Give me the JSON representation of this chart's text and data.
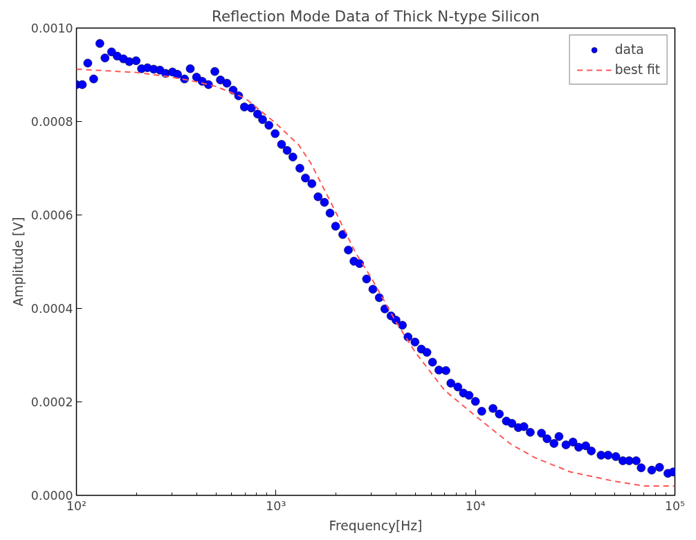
{
  "chart_data": {
    "type": "scatter",
    "title": "Reflection Mode Data of Thick N-type Silicon",
    "xlabel": "Frequency[Hz]",
    "ylabel": "Amplitude [V]",
    "log": "x",
    "xlim": [
      100,
      100000
    ],
    "xticks": [
      {
        "value": 100,
        "label": "10²"
      },
      {
        "value": 1000,
        "label": "10³"
      },
      {
        "value": 10000,
        "label": "10⁴"
      },
      {
        "value": 100000,
        "label": "10⁵"
      }
    ],
    "ylim": [
      0,
      0.001
    ],
    "yticks": [
      {
        "value": 0,
        "label": "0.0000"
      },
      {
        "value": 0.0002,
        "label": "0.0002"
      },
      {
        "value": 0.0004,
        "label": "0.0004"
      },
      {
        "value": 0.0006,
        "label": "0.0006"
      },
      {
        "value": 0.0008,
        "label": "0.0008"
      },
      {
        "value": 0.001,
        "label": "0.0010"
      }
    ],
    "grid": false,
    "legend": "top right",
    "series": [
      {
        "name": "data",
        "marker": "circle",
        "color": "#0000ff",
        "x": [
          100,
          107,
          114,
          122,
          131,
          139,
          150,
          160,
          172,
          184,
          199,
          212,
          227,
          244,
          262,
          280,
          303,
          321,
          348,
          372,
          400,
          427,
          459,
          494,
          527,
          568,
          610,
          650,
          695,
          753,
          809,
          857,
          922,
          991,
          1067,
          1138,
          1216,
          1318,
          1406,
          1514,
          1626,
          1750,
          1867,
          1991,
          2163,
          2307,
          2461,
          2625,
          2847,
          3062,
          3296,
          3516,
          3776,
          4000,
          4305,
          4592,
          4977,
          5358,
          5715,
          6095,
          6561,
          7112,
          7534,
          8166,
          8710,
          9290,
          10000,
          10760,
          12250,
          13180,
          14290,
          15240,
          16410,
          17500,
          18840,
          21440,
          22860,
          24770,
          26240,
          28440,
          30830,
          32960,
          35730,
          38110,
          42660,
          46240,
          50580,
          54830,
          59020,
          63970,
          67760,
          76560,
          83750,
          92260,
          98000
        ],
        "values": [
          0.000879,
          0.000879,
          0.000925,
          0.000891,
          0.000967,
          0.000936,
          0.000949,
          0.00094,
          0.000934,
          0.000928,
          0.00093,
          0.000913,
          0.000915,
          0.000912,
          0.00091,
          0.000903,
          0.000906,
          0.000901,
          0.000891,
          0.000913,
          0.000895,
          0.000886,
          0.000879,
          0.000907,
          0.000889,
          0.000882,
          0.000867,
          0.000855,
          0.000831,
          0.000829,
          0.000816,
          0.000804,
          0.000792,
          0.000774,
          0.000751,
          0.000738,
          0.000724,
          0.0007,
          0.000679,
          0.000667,
          0.000639,
          0.000627,
          0.000604,
          0.000576,
          0.000558,
          0.000525,
          0.000501,
          0.000496,
          0.000463,
          0.000441,
          0.000423,
          0.000399,
          0.000384,
          0.000375,
          0.000364,
          0.000339,
          0.000328,
          0.000313,
          0.000306,
          0.000285,
          0.000268,
          0.000267,
          0.00024,
          0.000232,
          0.000219,
          0.000214,
          0.000201,
          0.00018,
          0.000186,
          0.000174,
          0.000159,
          0.000154,
          0.000145,
          0.000147,
          0.000135,
          0.000133,
          0.000121,
          0.000111,
          0.000126,
          0.000108,
          0.000114,
          0.000103,
          0.000106,
          9.5e-05,
          8.6e-05,
          8.6e-05,
          8.3e-05,
          7.4e-05,
          7.4e-05,
          7.4e-05,
          5.9e-05,
          5.4e-05,
          6e-05,
          4.7e-05,
          5e-05
        ]
      },
      {
        "name": "best fit",
        "type": "line",
        "line_style": "dashed",
        "marker": "none",
        "color": "#ff5555",
        "x": [
          100,
          200,
          300,
          400,
          500,
          700,
          1000,
          1300,
          1500,
          2000,
          2500,
          3000,
          4000,
          5000,
          7000,
          10000,
          15000,
          20000,
          30000,
          50000,
          70000,
          100000
        ],
        "values": [
          0.000912,
          0.000905,
          0.000895,
          0.000885,
          0.000875,
          0.00085,
          0.000796,
          0.00075,
          0.00071,
          0.000605,
          0.00052,
          0.000466,
          0.000371,
          0.000306,
          0.000225,
          0.00017,
          0.00011,
          8e-05,
          5e-05,
          3e-05,
          2e-05,
          2e-05
        ]
      }
    ]
  }
}
